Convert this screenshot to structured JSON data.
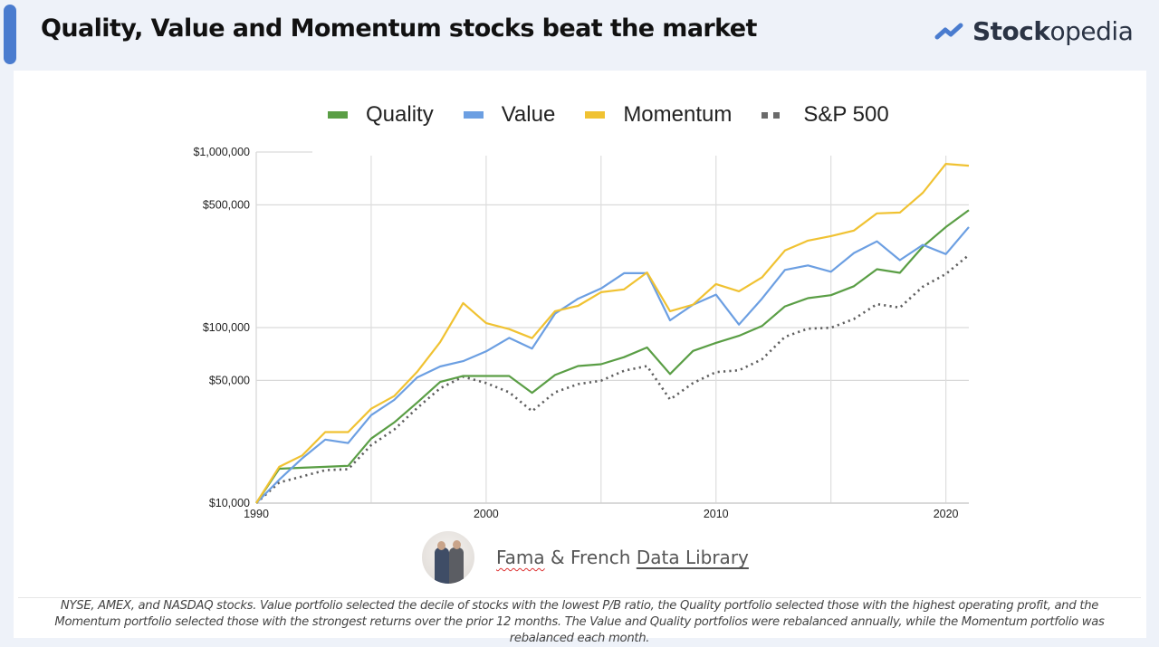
{
  "header": {
    "title": "Quality, Value and Momentum stocks beat the market",
    "brand_bold": "Stock",
    "brand_light": "opedia",
    "brand_icon": "trend-line-icon"
  },
  "colors": {
    "accent": "#4a7ccf",
    "quality": "#5a9e45",
    "value": "#6c9fe2",
    "momentum": "#f0c232",
    "sp500": "#5f5f5f"
  },
  "legend": [
    {
      "label": "Quality",
      "key": "quality"
    },
    {
      "label": "Value",
      "key": "value"
    },
    {
      "label": "Momentum",
      "key": "momentum"
    },
    {
      "label": "S&P 500",
      "key": "sp500"
    }
  ],
  "chart_data": {
    "type": "line",
    "title": "",
    "xlabel": "",
    "ylabel": "",
    "yscale": "log",
    "ylim": [
      10000,
      1000000
    ],
    "xlim": [
      1990,
      2021
    ],
    "xticks": [
      1990,
      2000,
      2010,
      2020
    ],
    "xtick_labels": [
      "1990",
      "2000",
      "2010",
      "2020"
    ],
    "yticks": [
      10000,
      50000,
      100000,
      500000,
      1000000
    ],
    "ytick_labels": [
      "$10,000",
      "$50,000",
      "$100,000",
      "$500,000",
      "$1,000,000"
    ],
    "grid": true,
    "legend_position": "top",
    "x": [
      1990,
      1991,
      1992,
      1993,
      1994,
      1995,
      1996,
      1997,
      1998,
      1999,
      2000,
      2001,
      2002,
      2003,
      2004,
      2005,
      2006,
      2007,
      2008,
      2009,
      2010,
      2011,
      2012,
      2013,
      2014,
      2015,
      2016,
      2017,
      2018,
      2019,
      2020,
      2021
    ],
    "series": [
      {
        "name": "Quality",
        "key": "quality",
        "style": "solid",
        "values": [
          10000,
          15700,
          15900,
          16100,
          16300,
          23300,
          28800,
          37400,
          49000,
          53000,
          53000,
          53000,
          42500,
          53700,
          60400,
          61800,
          67800,
          77000,
          54400,
          73600,
          81800,
          89800,
          102000,
          132000,
          147000,
          153000,
          172000,
          215000,
          205000,
          289000,
          374000,
          467000
        ]
      },
      {
        "name": "Value",
        "key": "value",
        "style": "solid",
        "values": [
          10000,
          13600,
          18000,
          23000,
          22000,
          31700,
          38700,
          52000,
          60000,
          64400,
          73200,
          87300,
          75900,
          120000,
          146000,
          167000,
          204000,
          204000,
          110000,
          135000,
          154000,
          104000,
          146000,
          213000,
          226000,
          208000,
          266000,
          310000,
          242000,
          296000,
          262000,
          374000
        ]
      },
      {
        "name": "Momentum",
        "key": "momentum",
        "style": "solid",
        "values": [
          10000,
          16100,
          18700,
          25400,
          25400,
          34500,
          40700,
          56000,
          82600,
          138000,
          106000,
          98000,
          87000,
          124000,
          133000,
          159000,
          165000,
          206000,
          124000,
          135000,
          177000,
          161000,
          193000,
          275000,
          313000,
          332000,
          357000,
          447000,
          452000,
          586000,
          856000,
          836000
        ]
      },
      {
        "name": "S&P 500",
        "key": "sp500",
        "style": "dotted",
        "values": [
          10000,
          13100,
          14200,
          15400,
          15600,
          21400,
          26200,
          34800,
          45100,
          52500,
          48300,
          42800,
          33400,
          42800,
          47600,
          49800,
          56800,
          60400,
          38900,
          48300,
          55800,
          57100,
          65900,
          88600,
          98600,
          99800,
          112000,
          136000,
          130000,
          171000,
          202000,
          259000
        ]
      }
    ]
  },
  "source": {
    "prefix": "Fama",
    "middle": " & French ",
    "link": "Data Library",
    "avatar_icon": "fama-french-photo"
  },
  "footnote": "NYSE, AMEX, and NASDAQ stocks. Value portfolio selected the decile of stocks with the lowest P/B ratio, the Quality portfolio selected those with the highest operating profit, and the Momentum portfolio selected those with the strongest returns over the prior 12 months. The Value and Quality portfolios were rebalanced annually, while the Momentum portfolio was rebalanced each month."
}
